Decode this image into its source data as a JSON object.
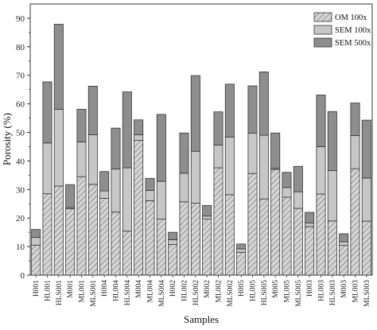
{
  "chart_data": {
    "type": "bar",
    "stacked": true,
    "title": "",
    "xlabel": "Samples",
    "ylabel": "Porosity (%)",
    "ylim": [
      0,
      95
    ],
    "yticks": [
      0,
      10,
      20,
      30,
      40,
      50,
      60,
      70,
      80,
      90
    ],
    "legend_position": "top-right",
    "grid": false,
    "categories": [
      "H001",
      "HL001",
      "HLS001",
      "M001",
      "ML001",
      "MLS001",
      "H004",
      "HL004",
      "HLS004",
      "M004",
      "ML004",
      "MLS004",
      "H002",
      "HL002",
      "HLS002",
      "M002",
      "ML002",
      "MLS002",
      "H005",
      "HL005",
      "HLS005",
      "M005",
      "ML005",
      "MLS005",
      "H003",
      "HL003",
      "HLS003",
      "M003",
      "ML003",
      "MLS003"
    ],
    "series": [
      {
        "name": "OM 100x",
        "pattern": "hatch",
        "color": "#cfcfcf",
        "values": [
          10.5,
          28.5,
          31.2,
          23.3,
          34.5,
          31.8,
          26.9,
          22.1,
          15.4,
          47.2,
          26.1,
          19.6,
          10.7,
          25.7,
          25.2,
          19.6,
          37.6,
          28.2,
          8.0,
          35.6,
          26.7,
          37.0,
          27.3,
          23.4,
          17.0,
          28.4,
          19.0,
          10.4,
          37.3,
          18.9
        ]
      },
      {
        "name": "SEM 100x",
        "pattern": "solid",
        "color": "#c7c7c7",
        "values": [
          2.7,
          17.8,
          26.9,
          0.4,
          12.2,
          17.4,
          2.6,
          15.1,
          22.2,
          2.0,
          3.6,
          13.3,
          1.7,
          10.0,
          18.2,
          1.1,
          8.0,
          20.2,
          1.2,
          14.1,
          22.3,
          0.4,
          3.4,
          5.8,
          1.3,
          16.6,
          17.6,
          1.3,
          11.6,
          15.1
        ]
      },
      {
        "name": "SEM 500x",
        "pattern": "solid",
        "color": "#8e8e8e",
        "values": [
          2.8,
          21.4,
          29.8,
          8.0,
          11.4,
          17.0,
          6.8,
          14.3,
          26.6,
          5.2,
          4.2,
          23.4,
          2.6,
          14.1,
          26.5,
          3.7,
          11.6,
          18.5,
          1.7,
          16.6,
          22.2,
          12.4,
          5.3,
          8.9,
          3.7,
          18.1,
          20.7,
          2.8,
          11.4,
          20.3
        ]
      }
    ]
  }
}
